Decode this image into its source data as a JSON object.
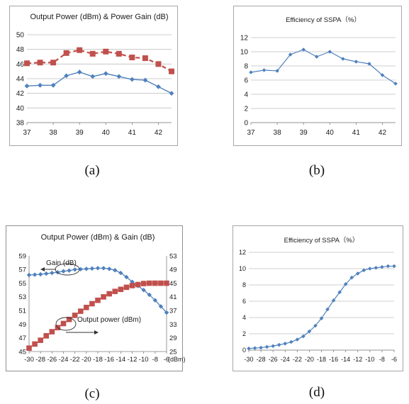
{
  "captions": [
    "(a)",
    "(b)",
    "(c)",
    "(d)"
  ],
  "chart_data": [
    {
      "type": "line",
      "title": "Output Power (dBm) & Power Gain (dB)",
      "xlabel": "",
      "ylabel": "",
      "xlim": [
        37,
        42.5
      ],
      "ylim": [
        38,
        50
      ],
      "xticks": [
        "37",
        "38",
        "39",
        "40",
        "41",
        "42"
      ],
      "yticks": [
        "38",
        "40",
        "42",
        "44",
        "46",
        "48",
        "50"
      ],
      "grid": "horizontal",
      "series": [
        {
          "color": "#4f81bd",
          "marker": "diamond",
          "dash": false,
          "x": [
            37,
            37.5,
            38,
            38.5,
            39,
            39.5,
            40,
            40.5,
            41,
            41.5,
            42,
            42.5
          ],
          "y": [
            43.0,
            43.1,
            43.1,
            44.4,
            44.9,
            44.3,
            44.7,
            44.3,
            43.9,
            43.8,
            42.9,
            42.0
          ]
        },
        {
          "color": "#c0504d",
          "marker": "square",
          "dash": true,
          "x": [
            37,
            37.5,
            38,
            38.5,
            39,
            39.5,
            40,
            40.5,
            41,
            41.5,
            42,
            42.5
          ],
          "y": [
            46.1,
            46.2,
            46.2,
            47.5,
            47.9,
            47.4,
            47.7,
            47.4,
            46.9,
            46.8,
            46.0,
            45.0
          ]
        }
      ]
    },
    {
      "type": "line",
      "title": "Efficiency of SSPA（%）",
      "xlabel": "",
      "ylabel": "",
      "xlim": [
        37,
        42.5
      ],
      "ylim": [
        0,
        12
      ],
      "xticks": [
        "37",
        "38",
        "39",
        "40",
        "41",
        "42"
      ],
      "yticks": [
        "0",
        "2",
        "4",
        "6",
        "8",
        "10",
        "12"
      ],
      "grid": "horizontal",
      "series": [
        {
          "color": "#4f81bd",
          "marker": "diamond",
          "dash": false,
          "x": [
            37,
            37.5,
            38,
            38.5,
            39,
            39.5,
            40,
            40.5,
            41,
            41.5,
            42,
            42.5
          ],
          "y": [
            7.1,
            7.4,
            7.3,
            9.6,
            10.3,
            9.3,
            10.0,
            9.0,
            8.6,
            8.3,
            6.7,
            5.5
          ]
        }
      ]
    },
    {
      "type": "line",
      "title": "Output Power (dBm) & Gain (dB)",
      "xlabel": "(dBm)",
      "ylabel": "",
      "xlim": [
        -30,
        -6
      ],
      "ylim": [
        45,
        59
      ],
      "y2lim": [
        25,
        53
      ],
      "xticks": [
        "-30",
        "-28",
        "-26",
        "-24",
        "-22",
        "-20",
        "-18",
        "-16",
        "-14",
        "-12",
        "-10",
        "-8",
        "-6"
      ],
      "yticks": [
        "45",
        "47",
        "49",
        "51",
        "53",
        "55",
        "57",
        "59"
      ],
      "y2ticks": [
        "25",
        "29",
        "33",
        "37",
        "41",
        "45",
        "49",
        "53"
      ],
      "grid": "none",
      "annotations": [
        "Gain (dB)",
        "Output power (dBm)"
      ],
      "series": [
        {
          "color": "#4f81bd",
          "marker": "diamond",
          "axis": "left",
          "x": [
            -30,
            -29,
            -28,
            -27,
            -26,
            -25,
            -24,
            -23,
            -22,
            -21,
            -20,
            -19,
            -18,
            -17,
            -16,
            -15,
            -14,
            -13,
            -12,
            -11,
            -10,
            -9,
            -8,
            -7,
            -6
          ],
          "y": [
            56.2,
            56.25,
            56.3,
            56.4,
            56.5,
            56.6,
            56.75,
            56.85,
            57.0,
            57.05,
            57.1,
            57.15,
            57.2,
            57.2,
            57.1,
            56.9,
            56.5,
            55.9,
            55.2,
            54.6,
            54.0,
            53.3,
            52.5,
            51.6,
            50.7
          ]
        },
        {
          "color": "#c0504d",
          "marker": "square",
          "axis": "right",
          "x": [
            -30,
            -29,
            -28,
            -27,
            -26,
            -25,
            -24,
            -23,
            -22,
            -21,
            -20,
            -19,
            -18,
            -17,
            -16,
            -15,
            -14,
            -13,
            -12,
            -11,
            -10,
            -9,
            -8,
            -7,
            -6
          ],
          "y": [
            26.0,
            27.2,
            28.3,
            29.6,
            30.8,
            32.0,
            33.2,
            34.4,
            35.6,
            36.8,
            37.9,
            39.0,
            40.0,
            41.0,
            41.9,
            42.6,
            43.2,
            43.8,
            44.3,
            44.6,
            44.9,
            45.0,
            45.0,
            45.0,
            45.0
          ]
        }
      ]
    },
    {
      "type": "line",
      "title": "Efficiency of SSPA（%）",
      "xlabel": "",
      "ylabel": "",
      "xlim": [
        -30,
        -6
      ],
      "ylim": [
        0,
        12
      ],
      "xticks": [
        "-30",
        "-28",
        "-26",
        "-24",
        "-22",
        "-20",
        "-18",
        "-16",
        "-14",
        "-12",
        "-10",
        "-8",
        "-6"
      ],
      "yticks": [
        "0",
        "2",
        "4",
        "6",
        "8",
        "10",
        "12"
      ],
      "grid": "horizontal",
      "series": [
        {
          "color": "#4f81bd",
          "marker": "diamond",
          "dash": false,
          "x": [
            -30,
            -29,
            -28,
            -27,
            -26,
            -25,
            -24,
            -23,
            -22,
            -21,
            -20,
            -19,
            -18,
            -17,
            -16,
            -15,
            -14,
            -13,
            -12,
            -11,
            -10,
            -9,
            -8,
            -7,
            -6
          ],
          "y": [
            0.2,
            0.25,
            0.3,
            0.4,
            0.5,
            0.65,
            0.8,
            1.0,
            1.3,
            1.7,
            2.3,
            3.0,
            3.9,
            5.0,
            6.1,
            7.1,
            8.1,
            8.9,
            9.4,
            9.8,
            10.0,
            10.1,
            10.2,
            10.3,
            10.3
          ]
        }
      ]
    }
  ]
}
